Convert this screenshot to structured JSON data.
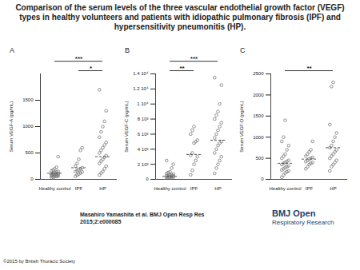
{
  "title": "Comparison of the serum levels of the three vascular endothelial growth factor (VEGF) types in healthy volunteers and patients with idiopathic pulmonary fibrosis (IPF) and hypersensitivity pneumonitis (HP).",
  "footer": {
    "author": [
      "Masahiro Yamashita et al. BMJ Open Resp Res",
      "2015;2:e000085"
    ],
    "copyright": "©2015 by British Thoracic Society",
    "logo": [
      "BMJ Open",
      "Respiratory Research"
    ]
  },
  "chart_data": [
    {
      "type": "scatter",
      "title": "A",
      "ylabel": "Serum VEGF-A (pg/mL)",
      "color": "#777777",
      "marker": "circle",
      "grid": false,
      "categories": [
        "Healthy control",
        "IPF",
        "HP"
      ],
      "values": [
        [
          30,
          40,
          50,
          55,
          60,
          65,
          70,
          75,
          80,
          85,
          90,
          95,
          100,
          105,
          110,
          115,
          120,
          130,
          140,
          150,
          160,
          180,
          200,
          230,
          430
        ],
        [
          60,
          80,
          100,
          120,
          140,
          150,
          160,
          180,
          200,
          220,
          250,
          300,
          380,
          550,
          600
        ],
        [
          80,
          120,
          150,
          200,
          250,
          300,
          350,
          380,
          420,
          450,
          500,
          550,
          600,
          650,
          700,
          800,
          900,
          1000,
          1100,
          1300,
          1700
        ]
      ],
      "means": [
        115,
        220,
        430
      ],
      "annotations": [
        {
          "from": 1,
          "to": 2,
          "text": "*"
        },
        {
          "from": 0,
          "to": 2,
          "text": "***"
        }
      ],
      "ylim": [
        0,
        2000
      ],
      "yticks": [
        0,
        500,
        1000,
        1500
      ]
    },
    {
      "type": "scatter",
      "title": "B",
      "ylabel": "Serum VEGF-C (pg/mL)",
      "color": "#777777",
      "marker": "circle",
      "grid": false,
      "categories": [
        "Healthy control",
        "IPF",
        "HP"
      ],
      "values": [
        [
          100,
          150,
          200,
          250,
          300,
          300,
          350,
          400,
          400,
          450,
          500,
          500,
          550,
          600,
          700,
          800,
          900,
          1000,
          1500,
          2000,
          2500
        ],
        [
          600,
          1200,
          2000,
          2500,
          3000,
          3200,
          3500,
          4800,
          5000,
          5200,
          6000,
          6500,
          7000
        ],
        [
          800,
          1500,
          2000,
          2500,
          3000,
          3500,
          4000,
          4500,
          4800,
          5000,
          5500,
          6000,
          6500,
          7000,
          7500,
          8000,
          8500,
          9000,
          10000,
          12500,
          13500
        ]
      ],
      "means": [
        400,
        3300,
        5200
      ],
      "annotations": [
        {
          "from": 0,
          "to": 1,
          "text": "**"
        },
        {
          "from": 0,
          "to": 2,
          "text": "***"
        }
      ],
      "ylim": [
        0,
        14000
      ],
      "yticks": [
        0,
        {
          "value": 2000,
          "label": "2 10³"
        },
        {
          "value": 4000,
          "label": "4 10³"
        },
        {
          "value": 6000,
          "label": "6 10³"
        },
        {
          "value": 8000,
          "label": "8 10³"
        },
        {
          "value": 10000,
          "label": "1 10⁴"
        },
        {
          "value": 12000,
          "label": "1.2 10⁴"
        },
        {
          "value": 14000,
          "label": "1.4 10⁴"
        }
      ]
    },
    {
      "type": "scatter",
      "title": "C",
      "ylabel": "Serum VEGF-D (pg/mL)",
      "color": "#777777",
      "marker": "circle",
      "grid": false,
      "categories": [
        "Healthy control",
        "IPF",
        "HP"
      ],
      "values": [
        [
          50,
          100,
          150,
          180,
          200,
          220,
          250,
          280,
          300,
          320,
          350,
          380,
          400,
          420,
          450,
          500,
          550,
          600,
          700,
          800,
          900,
          1000,
          1400
        ],
        [
          250,
          300,
          350,
          380,
          400,
          420,
          450,
          480,
          500,
          520,
          550,
          600,
          650,
          700,
          900
        ],
        [
          200,
          300,
          350,
          400,
          450,
          500,
          550,
          600,
          650,
          700,
          750,
          800,
          900,
          1000,
          1100,
          1300,
          2200,
          2300
        ]
      ],
      "means": [
        380,
        480,
        750
      ],
      "annotations": [
        {
          "from": 0,
          "to": 2,
          "text": "**"
        }
      ],
      "ylim": [
        0,
        2500
      ],
      "yticks": [
        0,
        500,
        1000,
        1500,
        2000,
        2500
      ]
    }
  ]
}
